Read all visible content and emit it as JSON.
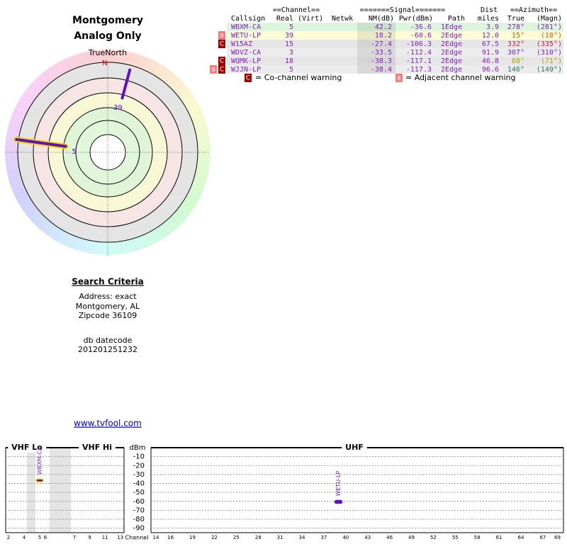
{
  "header": {
    "title": "Montgomery",
    "subtitle": "Analog Only"
  },
  "radar": {
    "north_label": "TrueNorth",
    "north_mark": "N",
    "stations": [
      {
        "label": "5",
        "azimuth": 278,
        "nm": 42.2,
        "outline": "#f0d800"
      },
      {
        "label": "39",
        "azimuth": 15,
        "nm": 18.2
      }
    ]
  },
  "criteria": {
    "heading": "Search Criteria",
    "lines": [
      "Address: exact",
      "Montgomery, AL",
      "Zipcode 36109"
    ],
    "datecode_label": "db datecode",
    "datecode": "201201251232"
  },
  "link": "www.tvfool.com",
  "table": {
    "group_headers": {
      "channel": "==Channel==",
      "signal": "=======Signal=======",
      "dist": "Dist",
      "azimuth": "==Azimuth=="
    },
    "columns": {
      "callsign": "Callsign",
      "real": "Real",
      "virt": "(Virt)",
      "netwk": "Netwk",
      "nm": "NM(dB)",
      "pwr": "Pwr(dBm)",
      "path": "Path",
      "dist": "miles",
      "true": "True",
      "magn": "(Magn)"
    },
    "rows": [
      {
        "callsign": "WBXM-CA",
        "real": "5",
        "nm": "42.2",
        "pwr": "-36.6",
        "path": "1Edge",
        "dist": "3.9",
        "true": "278°",
        "magn": "(281°)",
        "background": "#dcf5dc",
        "azimuth_color": "#8020c0"
      },
      {
        "flags": [
          "a"
        ],
        "callsign": "WETU-LP",
        "real": "39",
        "nm": "18.2",
        "pwr": "-60.6",
        "path": "2Edge",
        "dist": "12.0",
        "true": "15°",
        "magn": "(18°)",
        "background": "#fcfcd8",
        "azimuth_color": "#d06000"
      },
      {
        "flags": [
          "C"
        ],
        "callsign": "W15AZ",
        "real": "15",
        "nm": "-27.4",
        "pwr": "-106.3",
        "path": "2Edge",
        "dist": "67.5",
        "true": "332°",
        "magn": "(335°)",
        "background": "#e6e6e6",
        "azimuth_color": "#c02040"
      },
      {
        "callsign": "WDVZ-CA",
        "real": "3",
        "nm": "-33.5",
        "pwr": "-112.4",
        "path": "2Edge",
        "dist": "91.9",
        "true": "307°",
        "magn": "(310°)",
        "background": "#ececec",
        "azimuth_color": "#8020c0"
      },
      {
        "flags": [
          "C"
        ],
        "callsign": "WQMK-LP",
        "real": "18",
        "nm": "-38.3",
        "pwr": "-117.1",
        "path": "2Edge",
        "dist": "46.8",
        "true": "68°",
        "magn": "(71°)",
        "background": "#e6e6e6",
        "azimuth_color": "#b0a000"
      },
      {
        "flags": [
          "a",
          "C"
        ],
        "callsign": "WJJN-LP",
        "real": "5",
        "nm": "-38.4",
        "pwr": "-117.3",
        "path": "2Edge",
        "dist": "96.6",
        "true": "146°",
        "magn": "(149°)",
        "background": "#ececec",
        "azimuth_color": "#208050"
      }
    ]
  },
  "legend": {
    "co_channel": {
      "flag": "C",
      "text": "= Co-channel warning"
    },
    "adjacent": {
      "flag": "a",
      "text": "= Adjacent channel warning"
    }
  },
  "chart_data": {
    "type": "bar",
    "y_label": "dBm",
    "x_label": "Channel",
    "bands": [
      {
        "name": "VHF Lo",
        "xticks": [
          2,
          4,
          5,
          6
        ]
      },
      {
        "name": "VHF Hi",
        "xticks": [
          7,
          9,
          11,
          13
        ]
      },
      {
        "name": "UHF",
        "xticks": [
          14,
          16,
          19,
          22,
          25,
          28,
          31,
          34,
          37,
          40,
          43,
          46,
          49,
          52,
          55,
          58,
          61,
          64,
          67,
          69
        ]
      }
    ],
    "ylim": [
      -95,
      0
    ],
    "yticks": [
      -10,
      -20,
      -30,
      -40,
      -50,
      -60,
      -70,
      -80,
      -90
    ],
    "grid": true,
    "x": [
      5,
      39
    ],
    "values": [
      -36.6,
      -60.6
    ],
    "labels": [
      "WBXM-CA",
      "WETU-LP"
    ],
    "color": "#6010c0",
    "outlines": [
      "#f0d800",
      "#6010c0"
    ]
  }
}
